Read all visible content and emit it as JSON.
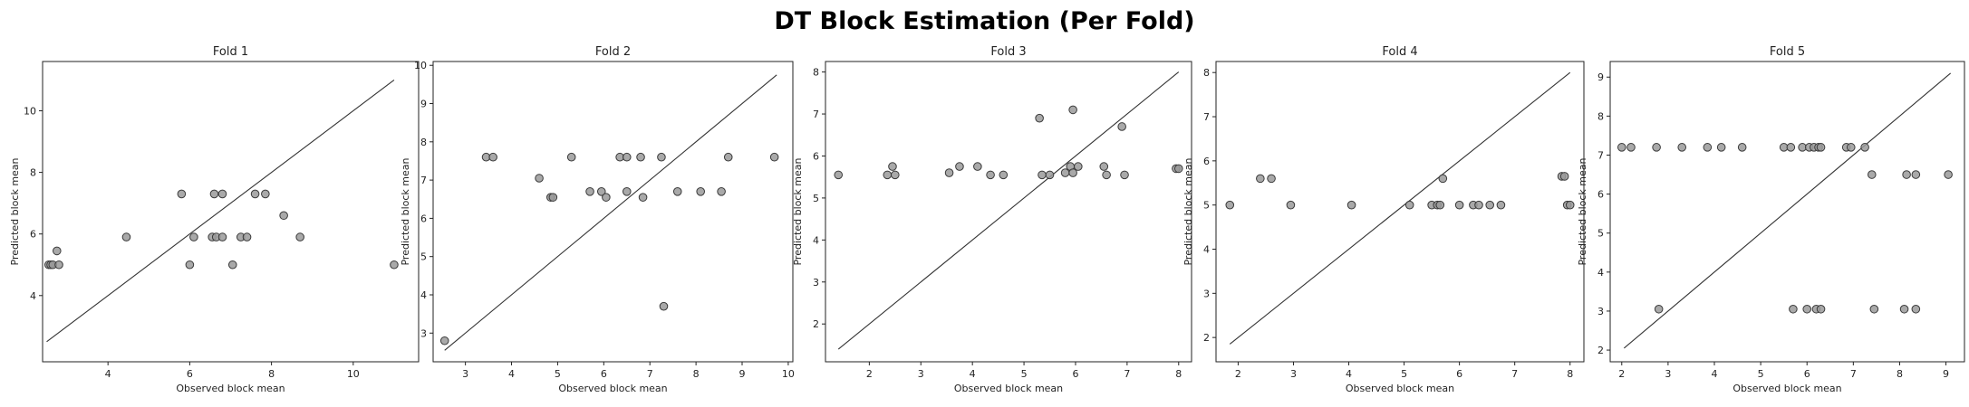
{
  "figure_title": "DT Block Estimation (Per Fold)",
  "chart_data": [
    {
      "type": "scatter",
      "title": "Fold 1",
      "xlabel": "Observed block mean",
      "ylabel": "Predicted block mean",
      "xlim": [
        2.4,
        11.6
      ],
      "ylim": [
        1.85,
        11.6
      ],
      "xticks": [
        4,
        6,
        8,
        10
      ],
      "yticks": [
        4,
        6,
        8,
        10
      ],
      "identity_line": [
        2.5,
        11.0
      ],
      "points": [
        [
          2.55,
          5.0
        ],
        [
          2.6,
          5.0
        ],
        [
          2.65,
          5.0
        ],
        [
          2.75,
          5.45
        ],
        [
          2.8,
          5.0
        ],
        [
          4.45,
          5.9
        ],
        [
          5.8,
          7.3
        ],
        [
          6.0,
          5.0
        ],
        [
          6.1,
          5.9
        ],
        [
          6.55,
          5.9
        ],
        [
          6.6,
          7.3
        ],
        [
          6.65,
          5.9
        ],
        [
          6.8,
          5.9
        ],
        [
          6.8,
          7.3
        ],
        [
          7.05,
          5.0
        ],
        [
          7.25,
          5.9
        ],
        [
          7.4,
          5.9
        ],
        [
          7.6,
          7.3
        ],
        [
          7.85,
          7.3
        ],
        [
          8.3,
          6.6
        ],
        [
          8.7,
          5.9
        ],
        [
          11.0,
          5.0
        ]
      ]
    },
    {
      "type": "scatter",
      "title": "Fold 2",
      "xlabel": "Observed block mean",
      "ylabel": "Predicted block mean",
      "xlim": [
        2.3,
        10.1
      ],
      "ylim": [
        2.25,
        10.1
      ],
      "xticks": [
        3,
        4,
        5,
        6,
        7,
        8,
        9,
        10
      ],
      "yticks": [
        3,
        4,
        5,
        6,
        7,
        8,
        9,
        10
      ],
      "identity_line": [
        2.55,
        9.75
      ],
      "points": [
        [
          2.55,
          2.8
        ],
        [
          3.45,
          7.6
        ],
        [
          3.6,
          7.6
        ],
        [
          4.6,
          7.05
        ],
        [
          4.85,
          6.55
        ],
        [
          4.9,
          6.55
        ],
        [
          5.3,
          7.6
        ],
        [
          5.7,
          6.7
        ],
        [
          5.95,
          6.7
        ],
        [
          6.05,
          6.55
        ],
        [
          6.35,
          7.6
        ],
        [
          6.5,
          7.6
        ],
        [
          6.5,
          6.7
        ],
        [
          6.8,
          7.6
        ],
        [
          6.85,
          6.55
        ],
        [
          7.25,
          7.6
        ],
        [
          7.3,
          3.7
        ],
        [
          7.6,
          6.7
        ],
        [
          8.1,
          6.7
        ],
        [
          8.55,
          6.7
        ],
        [
          8.7,
          7.6
        ],
        [
          9.7,
          7.6
        ]
      ]
    },
    {
      "type": "scatter",
      "title": "Fold 3",
      "xlabel": "Observed block mean",
      "ylabel": "Predicted block mean",
      "xlim": [
        1.15,
        8.25
      ],
      "ylim": [
        1.1,
        8.25
      ],
      "xticks": [
        2,
        3,
        4,
        5,
        6,
        7,
        8
      ],
      "yticks": [
        2,
        3,
        4,
        5,
        6,
        7,
        8
      ],
      "identity_line": [
        1.4,
        8.0
      ],
      "points": [
        [
          1.4,
          5.55
        ],
        [
          2.35,
          5.55
        ],
        [
          2.45,
          5.75
        ],
        [
          2.5,
          5.55
        ],
        [
          3.55,
          5.6
        ],
        [
          3.75,
          5.75
        ],
        [
          4.1,
          5.75
        ],
        [
          4.35,
          5.55
        ],
        [
          4.6,
          5.55
        ],
        [
          5.3,
          6.9
        ],
        [
          5.35,
          5.55
        ],
        [
          5.5,
          5.55
        ],
        [
          5.8,
          5.6
        ],
        [
          5.9,
          5.75
        ],
        [
          5.95,
          5.6
        ],
        [
          5.95,
          7.1
        ],
        [
          6.05,
          5.75
        ],
        [
          6.55,
          5.75
        ],
        [
          6.6,
          5.55
        ],
        [
          6.9,
          6.7
        ],
        [
          6.95,
          5.55
        ],
        [
          7.95,
          5.7
        ],
        [
          8.0,
          5.7
        ]
      ]
    },
    {
      "type": "scatter",
      "title": "Fold 4",
      "xlabel": "Observed block mean",
      "ylabel": "Predicted block mean",
      "xlim": [
        1.6,
        8.25
      ],
      "ylim": [
        1.45,
        8.25
      ],
      "xticks": [
        2,
        3,
        4,
        5,
        6,
        7,
        8
      ],
      "yticks": [
        2,
        3,
        4,
        5,
        6,
        7,
        8
      ],
      "identity_line": [
        1.85,
        8.0
      ],
      "points": [
        [
          1.85,
          5.0
        ],
        [
          2.4,
          5.6
        ],
        [
          2.6,
          5.6
        ],
        [
          2.95,
          5.0
        ],
        [
          4.05,
          5.0
        ],
        [
          5.1,
          5.0
        ],
        [
          5.5,
          5.0
        ],
        [
          5.6,
          5.0
        ],
        [
          5.65,
          5.0
        ],
        [
          5.7,
          5.6
        ],
        [
          6.0,
          5.0
        ],
        [
          6.25,
          5.0
        ],
        [
          6.35,
          5.0
        ],
        [
          6.55,
          5.0
        ],
        [
          6.75,
          5.0
        ],
        [
          7.85,
          5.65
        ],
        [
          7.9,
          5.65
        ],
        [
          7.95,
          5.0
        ],
        [
          8.0,
          5.0
        ]
      ]
    },
    {
      "type": "scatter",
      "title": "Fold 5",
      "xlabel": "Observed block mean",
      "ylabel": "Predicted block mean",
      "xlim": [
        1.75,
        9.4
      ],
      "ylim": [
        1.7,
        9.4
      ],
      "xticks": [
        2,
        3,
        4,
        5,
        6,
        7,
        8,
        9
      ],
      "yticks": [
        2,
        3,
        4,
        5,
        6,
        7,
        8,
        9
      ],
      "identity_line": [
        2.05,
        9.1
      ],
      "points": [
        [
          2.0,
          7.2
        ],
        [
          2.2,
          7.2
        ],
        [
          2.75,
          7.2
        ],
        [
          2.8,
          3.05
        ],
        [
          3.3,
          7.2
        ],
        [
          3.85,
          7.2
        ],
        [
          4.15,
          7.2
        ],
        [
          4.6,
          7.2
        ],
        [
          5.5,
          7.2
        ],
        [
          5.65,
          7.2
        ],
        [
          5.7,
          3.05
        ],
        [
          5.9,
          7.2
        ],
        [
          6.0,
          3.05
        ],
        [
          6.05,
          7.2
        ],
        [
          6.15,
          7.2
        ],
        [
          6.2,
          3.05
        ],
        [
          6.25,
          7.2
        ],
        [
          6.3,
          7.2
        ],
        [
          6.3,
          3.05
        ],
        [
          6.85,
          7.2
        ],
        [
          6.95,
          7.2
        ],
        [
          7.25,
          7.2
        ],
        [
          7.4,
          6.5
        ],
        [
          7.45,
          3.05
        ],
        [
          8.1,
          3.05
        ],
        [
          8.15,
          6.5
        ],
        [
          8.35,
          6.5
        ],
        [
          8.35,
          3.05
        ],
        [
          9.05,
          6.5
        ]
      ]
    }
  ]
}
